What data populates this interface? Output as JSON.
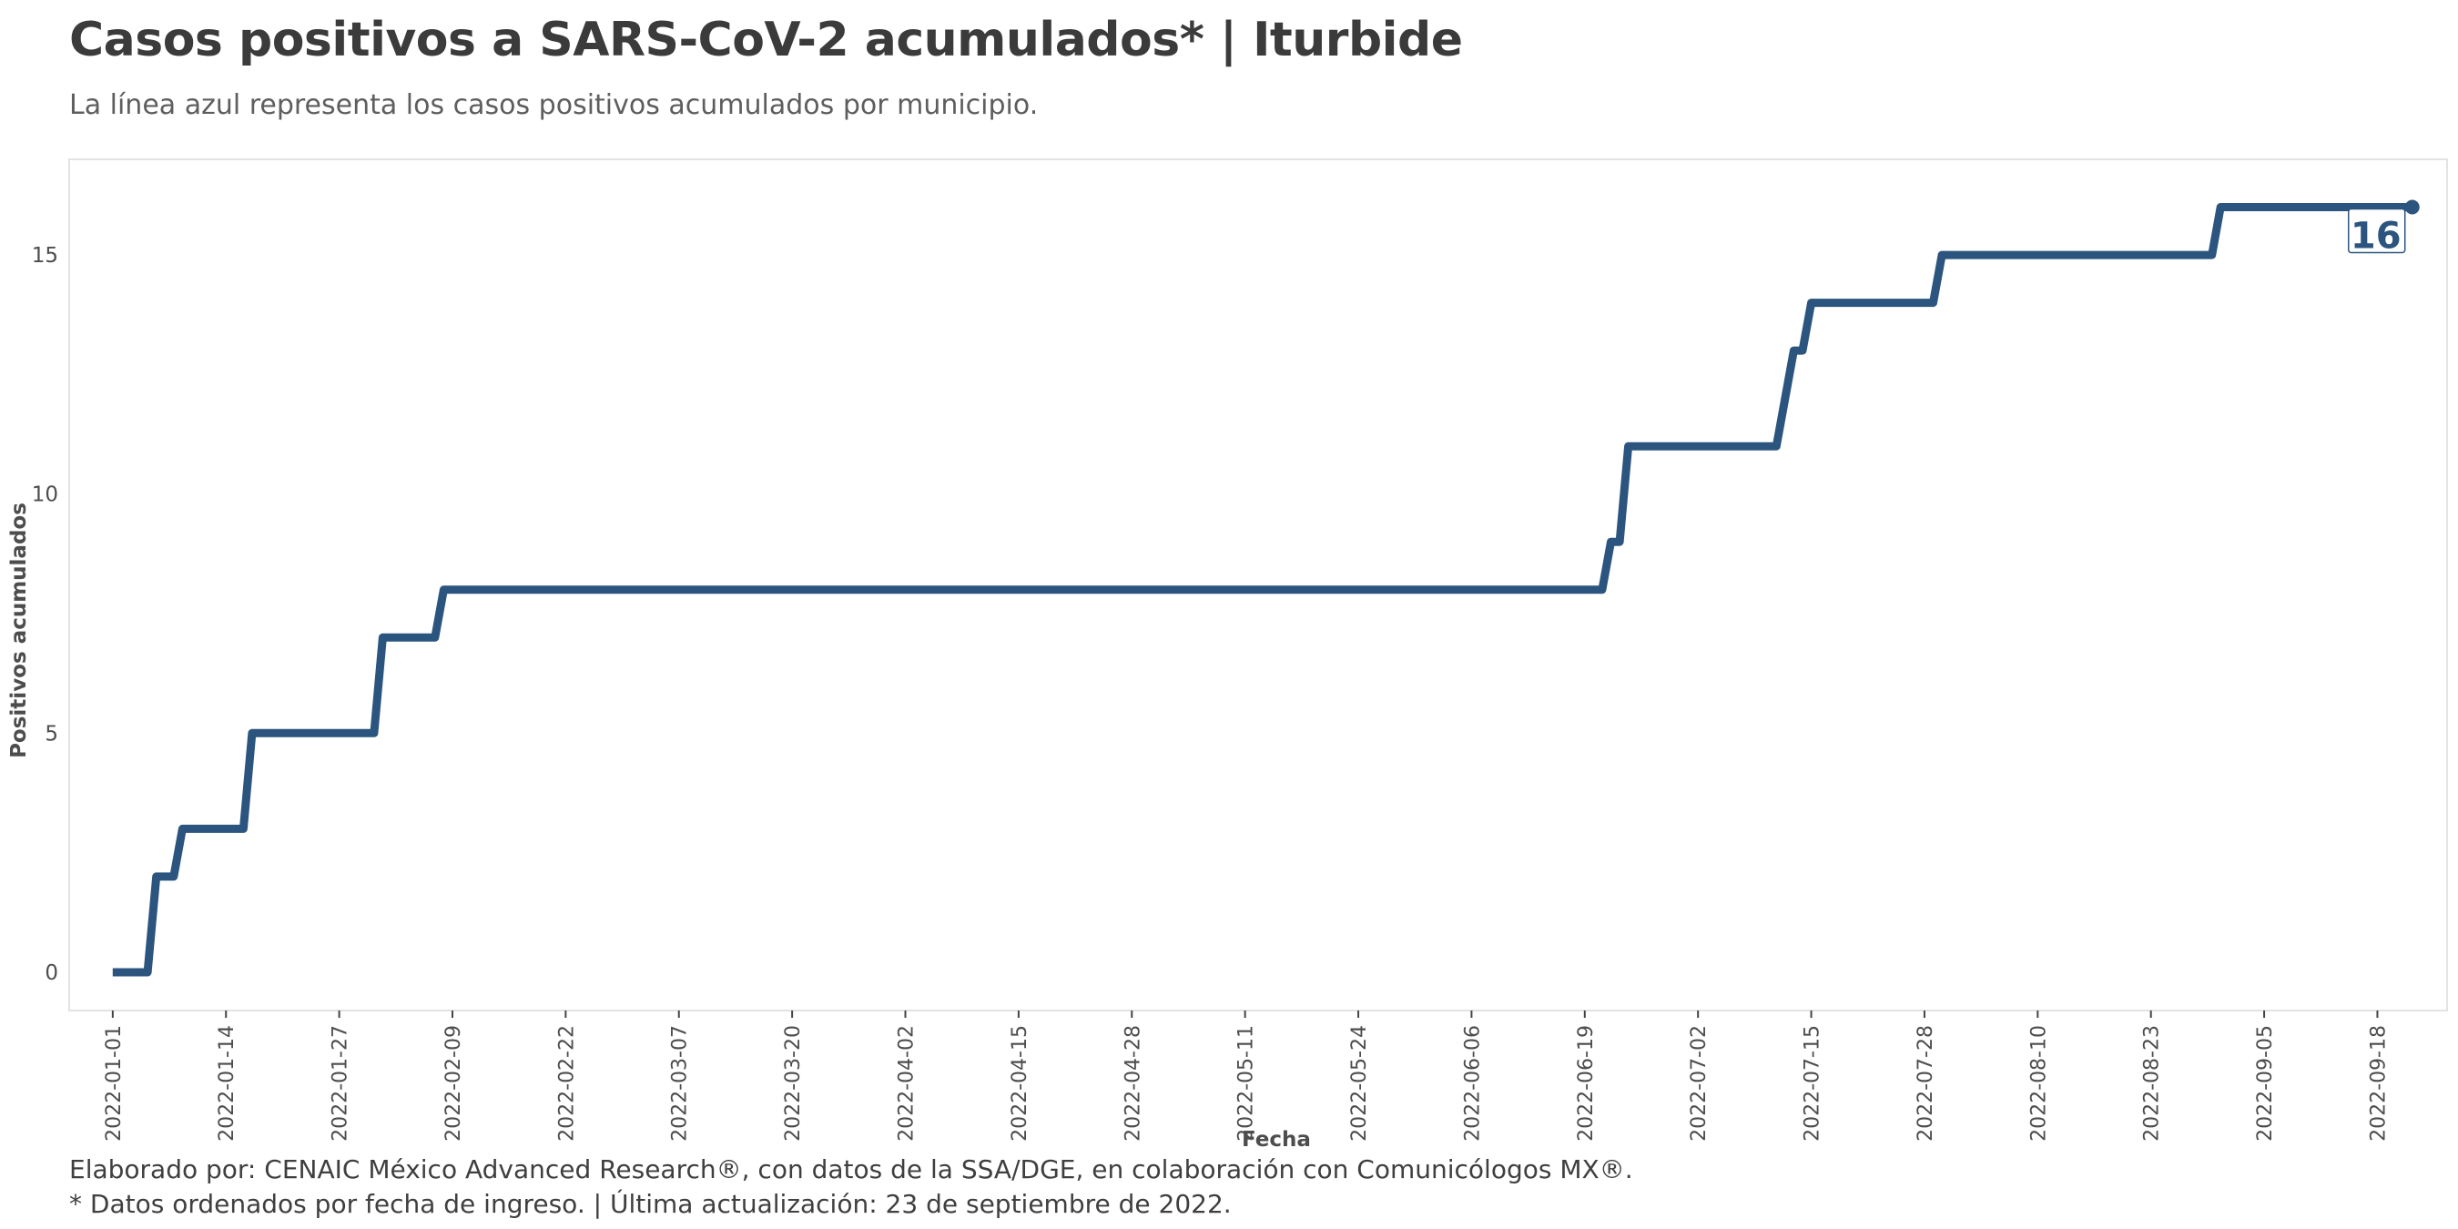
{
  "header": {
    "title": "Casos positivos a SARS-CoV-2 acumulados* | Iturbide",
    "subtitle": "La línea azul representa los casos positivos acumulados por municipio."
  },
  "footer": {
    "line1": "Elaborado por: CENAIC México Advanced Research®, con datos de la SSA/DGE, en colaboración con Comunicólogos MX®.",
    "line2": "* Datos ordenados por fecha de ingreso. | Última actualización: 23 de septiembre de 2022."
  },
  "colors": {
    "line": "#2b557e",
    "panel_border": "#e3e3e3",
    "text": "#4d4d4d"
  },
  "chart_data": {
    "type": "line",
    "style": "step",
    "xlabel": "Fecha",
    "ylabel": "Positivos acumulados",
    "x_range": [
      "2021-12-27",
      "2022-09-26"
    ],
    "ylim": [
      -0.8,
      17.0
    ],
    "y_ticks": [
      0,
      5,
      10,
      15
    ],
    "x_ticks": [
      "2022-01-01",
      "2022-01-14",
      "2022-01-27",
      "2022-02-09",
      "2022-02-22",
      "2022-03-07",
      "2022-03-20",
      "2022-04-02",
      "2022-04-15",
      "2022-04-28",
      "2022-05-11",
      "2022-05-24",
      "2022-06-06",
      "2022-06-19",
      "2022-07-02",
      "2022-07-15",
      "2022-07-28",
      "2022-08-10",
      "2022-08-23",
      "2022-09-05",
      "2022-09-18"
    ],
    "grid": false,
    "legend": "none",
    "series": [
      {
        "points": [
          {
            "x": "2022-01-01",
            "y": 0
          },
          {
            "x": "2022-01-05",
            "y": 0
          },
          {
            "x": "2022-01-06",
            "y": 2
          },
          {
            "x": "2022-01-08",
            "y": 2
          },
          {
            "x": "2022-01-09",
            "y": 3
          },
          {
            "x": "2022-01-16",
            "y": 3
          },
          {
            "x": "2022-01-17",
            "y": 5
          },
          {
            "x": "2022-01-31",
            "y": 5
          },
          {
            "x": "2022-02-01",
            "y": 7
          },
          {
            "x": "2022-02-07",
            "y": 7
          },
          {
            "x": "2022-02-08",
            "y": 8
          },
          {
            "x": "2022-06-21",
            "y": 8
          },
          {
            "x": "2022-06-22",
            "y": 9
          },
          {
            "x": "2022-06-23",
            "y": 9
          },
          {
            "x": "2022-06-24",
            "y": 11
          },
          {
            "x": "2022-07-11",
            "y": 11
          },
          {
            "x": "2022-07-13",
            "y": 13
          },
          {
            "x": "2022-07-14",
            "y": 13
          },
          {
            "x": "2022-07-15",
            "y": 14
          },
          {
            "x": "2022-07-29",
            "y": 14
          },
          {
            "x": "2022-07-30",
            "y": 15
          },
          {
            "x": "2022-08-30",
            "y": 15
          },
          {
            "x": "2022-08-31",
            "y": 16
          },
          {
            "x": "2022-09-22",
            "y": 16
          }
        ]
      }
    ],
    "annotations": [
      {
        "x": "2022-09-22",
        "y": 16,
        "text": "16"
      }
    ]
  }
}
